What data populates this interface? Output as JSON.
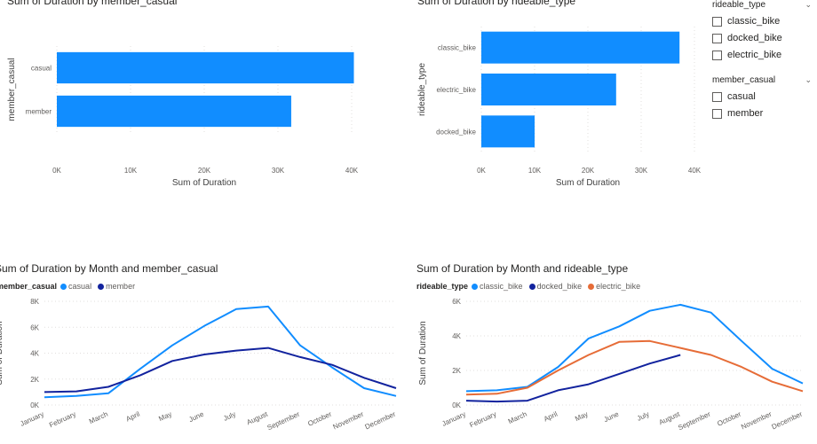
{
  "colors": {
    "bar": "#118DFF",
    "casual": "#118DFF",
    "member": "#12239E",
    "classic_bike": "#118DFF",
    "docked_bike": "#12239E",
    "electric_bike": "#E66C37"
  },
  "visuals": {
    "member_bar_title": "Sum of Duration by member_casual",
    "rideable_bar_title": "Sum of Duration by rideable_type",
    "member_line_title": "Sum of Duration by Month and member_casual",
    "rideable_line_title": "Sum of Duration by Month and rideable_type"
  },
  "slicers": {
    "rideable": {
      "title": "rideable_type",
      "options": [
        "classic_bike",
        "docked_bike",
        "electric_bike"
      ]
    },
    "member": {
      "title": "member_casual",
      "options": [
        "casual",
        "member"
      ]
    }
  },
  "legends": {
    "member_line": {
      "title": "member_casual",
      "items": [
        {
          "label": "casual",
          "color": "casual"
        },
        {
          "label": "member",
          "color": "member"
        }
      ]
    },
    "rideable_line": {
      "title": "rideable_type",
      "items": [
        {
          "label": "classic_bike",
          "color": "classic_bike"
        },
        {
          "label": "docked_bike",
          "color": "docked_bike"
        },
        {
          "label": "electric_bike",
          "color": "electric_bike"
        }
      ]
    }
  },
  "chart_data": [
    {
      "type": "bar",
      "orientation": "horizontal",
      "title": "Sum of Duration by member_casual",
      "categories": [
        "casual",
        "member"
      ],
      "values": [
        40300,
        31800
      ],
      "xlabel": "Sum of Duration",
      "ylabel": "member_casual",
      "xticks": [
        "0K",
        "10K",
        "20K",
        "30K",
        "40K"
      ],
      "xlim": [
        0,
        40000
      ]
    },
    {
      "type": "bar",
      "orientation": "horizontal",
      "title": "Sum of Duration by rideable_type",
      "categories": [
        "classic_bike",
        "electric_bike",
        "docked_bike"
      ],
      "values": [
        37200,
        25300,
        10000
      ],
      "xlabel": "Sum of Duration",
      "ylabel": "rideable_type",
      "xticks": [
        "0K",
        "10K",
        "20K",
        "30K",
        "40K"
      ],
      "xlim": [
        0,
        40000
      ]
    },
    {
      "type": "line",
      "title": "Sum of Duration by Month and member_casual",
      "categories": [
        "January",
        "February",
        "March",
        "April",
        "May",
        "June",
        "July",
        "August",
        "September",
        "October",
        "November",
        "December"
      ],
      "series": [
        {
          "name": "casual",
          "color": "casual",
          "values": [
            600,
            700,
            900,
            2800,
            4600,
            6100,
            7400,
            7600,
            4600,
            2900,
            1300,
            700
          ]
        },
        {
          "name": "member",
          "color": "member",
          "values": [
            1000,
            1050,
            1400,
            2300,
            3400,
            3900,
            4200,
            4400,
            3700,
            3100,
            2100,
            1300
          ]
        }
      ],
      "ylabel": "Sum of Duration",
      "yticks": [
        "0K",
        "2K",
        "4K",
        "6K",
        "8K"
      ],
      "ylim": [
        0,
        8000
      ]
    },
    {
      "type": "line",
      "title": "Sum of Duration by Month and rideable_type",
      "categories": [
        "January",
        "February",
        "March",
        "April",
        "May",
        "June",
        "July",
        "August",
        "September",
        "October",
        "November",
        "December"
      ],
      "series": [
        {
          "name": "classic_bike",
          "color": "classic_bike",
          "values": [
            800,
            850,
            1050,
            2200,
            3850,
            4550,
            5450,
            5800,
            5350,
            3700,
            2100,
            1250
          ]
        },
        {
          "name": "docked_bike",
          "color": "docked_bike",
          "values": [
            250,
            200,
            250,
            850,
            1200,
            1800,
            2400,
            2900,
            null,
            null,
            null,
            null
          ]
        },
        {
          "name": "electric_bike",
          "color": "electric_bike",
          "values": [
            600,
            650,
            1000,
            2000,
            2900,
            3650,
            3700,
            3300,
            2900,
            2200,
            1350,
            800
          ]
        }
      ],
      "ylabel": "Sum of Duration",
      "yticks": [
        "0K",
        "2K",
        "4K",
        "6K"
      ],
      "ylim": [
        0,
        6000
      ]
    }
  ]
}
